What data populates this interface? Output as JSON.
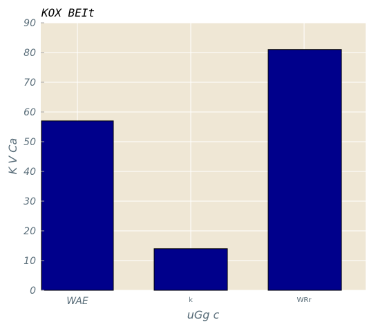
{
  "chart_data": {
    "type": "bar",
    "title": "KOX BEIt",
    "xlabel": "uGg c",
    "ylabel": "K V Ca",
    "categories": [
      "WAE",
      "k",
      "WRr"
    ],
    "values": [
      57,
      14,
      81
    ],
    "ylim": [
      0,
      90
    ],
    "yticks": [
      0,
      10,
      20,
      30,
      40,
      50,
      60,
      70,
      80,
      90
    ],
    "grid": true,
    "colors": {
      "bar": "#00008b",
      "bar_edge": "#000000",
      "plot_background": "#efe7d5",
      "grid": "#ffffff",
      "text": "#5a6e7a"
    }
  }
}
